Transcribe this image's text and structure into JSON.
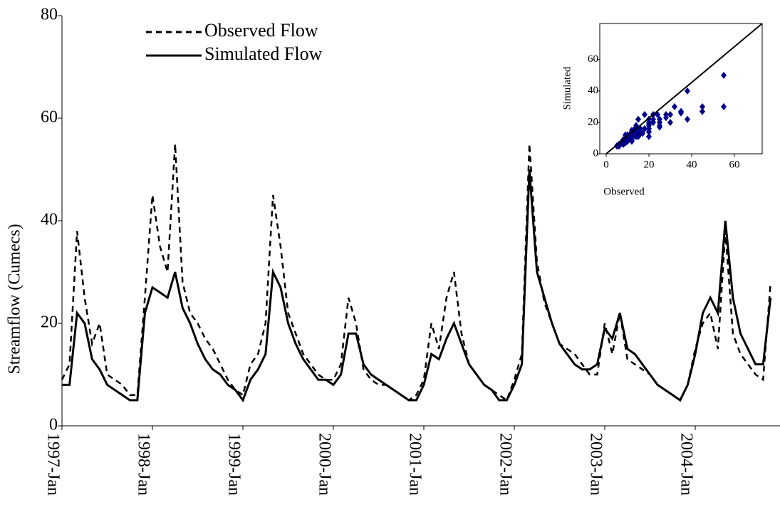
{
  "chart_data": [
    {
      "type": "line",
      "ylabel": "Streamflow (Cumecs)",
      "x": [
        "1997-01",
        "1997-02",
        "1997-03",
        "1997-04",
        "1997-05",
        "1997-06",
        "1997-07",
        "1997-08",
        "1997-09",
        "1997-10",
        "1997-11",
        "1997-12",
        "1998-01",
        "1998-02",
        "1998-03",
        "1998-04",
        "1998-05",
        "1998-06",
        "1998-07",
        "1998-08",
        "1998-09",
        "1998-10",
        "1998-11",
        "1998-12",
        "1999-01",
        "1999-02",
        "1999-03",
        "1999-04",
        "1999-05",
        "1999-06",
        "1999-07",
        "1999-08",
        "1999-09",
        "1999-10",
        "1999-11",
        "1999-12",
        "2000-01",
        "2000-02",
        "2000-03",
        "2000-04",
        "2000-05",
        "2000-06",
        "2000-07",
        "2000-08",
        "2000-09",
        "2000-10",
        "2000-11",
        "2000-12",
        "2001-01",
        "2001-02",
        "2001-03",
        "2001-04",
        "2001-05",
        "2001-06",
        "2001-07",
        "2001-08",
        "2001-09",
        "2001-10",
        "2001-11",
        "2001-12",
        "2002-01",
        "2002-02",
        "2002-03",
        "2002-04",
        "2002-05",
        "2002-06",
        "2002-07",
        "2002-08",
        "2002-09",
        "2002-10",
        "2002-11",
        "2002-12",
        "2003-01",
        "2003-02",
        "2003-03",
        "2003-04",
        "2003-05",
        "2003-06",
        "2003-07",
        "2003-08",
        "2003-09",
        "2003-10",
        "2003-11",
        "2003-12",
        "2004-01",
        "2004-02",
        "2004-03",
        "2004-04",
        "2004-05",
        "2004-06",
        "2004-07",
        "2004-08",
        "2004-09",
        "2004-10",
        "2004-11"
      ],
      "series": [
        {
          "name": "Observed Flow",
          "color": "#000000",
          "dash": true,
          "values": [
            9,
            12,
            38,
            25,
            16,
            20,
            10,
            9,
            8,
            6,
            6,
            25,
            45,
            35,
            30,
            55,
            28,
            22,
            20,
            17,
            15,
            12,
            9,
            7,
            6,
            12,
            14,
            20,
            45,
            35,
            22,
            18,
            14,
            12,
            10,
            9,
            9,
            12,
            25,
            20,
            11,
            9,
            8,
            8,
            7,
            6,
            5,
            6,
            9,
            20,
            15,
            25,
            30,
            18,
            12,
            10,
            8,
            7,
            6,
            5,
            9,
            14,
            55,
            32,
            24,
            20,
            16,
            15,
            14,
            12,
            10,
            10,
            20,
            14,
            22,
            13,
            12,
            11,
            10,
            8,
            7,
            6,
            5,
            8,
            15,
            20,
            22,
            15,
            38,
            18,
            14,
            12,
            10,
            9,
            28
          ]
        },
        {
          "name": "Simulated Flow",
          "color": "#000000",
          "dash": false,
          "values": [
            8,
            8,
            22,
            20,
            13,
            11,
            8,
            7,
            6,
            5,
            5,
            22,
            27,
            26,
            25,
            30,
            23,
            20,
            16,
            13,
            11,
            10,
            8,
            7,
            5,
            9,
            11,
            14,
            30,
            27,
            20,
            16,
            13,
            11,
            9,
            9,
            8,
            10,
            18,
            18,
            12,
            10,
            9,
            8,
            7,
            6,
            5,
            5,
            8,
            14,
            13,
            17,
            20,
            16,
            12,
            10,
            8,
            7,
            5,
            5,
            8,
            12,
            50,
            30,
            25,
            20,
            16,
            14,
            12,
            11,
            11,
            12,
            19,
            17,
            22,
            15,
            14,
            12,
            10,
            8,
            7,
            6,
            5,
            8,
            14,
            22,
            25,
            22,
            40,
            25,
            18,
            15,
            12,
            12,
            25
          ]
        }
      ],
      "ylim": [
        0,
        80
      ],
      "yticks": [
        0,
        20,
        40,
        60,
        80
      ],
      "xticks": [
        {
          "value": "1997-01",
          "label": "1997-Jan"
        },
        {
          "value": "1998-01",
          "label": "1998-Jan"
        },
        {
          "value": "1999-01",
          "label": "1999-Jan"
        },
        {
          "value": "2000-01",
          "label": "2000-Jan"
        },
        {
          "value": "2001-01",
          "label": "2001-Jan"
        },
        {
          "value": "2002-01",
          "label": "2002-Jan"
        },
        {
          "value": "2003-01",
          "label": "2003-Jan"
        },
        {
          "value": "2004-01",
          "label": "2004-Jan"
        }
      ],
      "legend": "upper-left"
    },
    {
      "type": "scatter",
      "xlabel": "Observed",
      "ylabel": "Simulated",
      "color": "#00008b",
      "xlim": [
        -3,
        73
      ],
      "ylim": [
        0,
        83
      ],
      "xticks": [
        0,
        20,
        40,
        60
      ],
      "yticks": [
        0,
        20,
        40,
        60
      ]
    }
  ]
}
